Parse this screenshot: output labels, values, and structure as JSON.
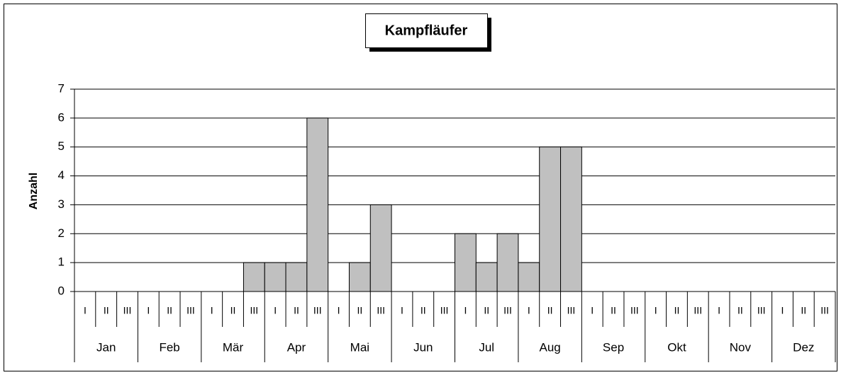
{
  "chart_data": {
    "type": "bar",
    "title": "Kampfläufer",
    "y_label": "Anzahl",
    "categories": [
      "I",
      "II",
      "III",
      "I",
      "II",
      "III",
      "I",
      "II",
      "III",
      "I",
      "II",
      "III",
      "I",
      "II",
      "III",
      "I",
      "II",
      "III",
      "I",
      "II",
      "III",
      "I",
      "II",
      "III",
      "I",
      "II",
      "III",
      "I",
      "II",
      "III",
      "I",
      "II",
      "III",
      "I",
      "II",
      "III"
    ],
    "category_groups": [
      "Jan",
      "Feb",
      "Mär",
      "Apr",
      "Mai",
      "Jun",
      "Jul",
      "Aug",
      "Sep",
      "Okt",
      "Nov",
      "Dez"
    ],
    "values": [
      0,
      0,
      0,
      0,
      0,
      0,
      0,
      0,
      1,
      1,
      1,
      6,
      0,
      1,
      3,
      0,
      0,
      0,
      2,
      1,
      2,
      1,
      5,
      5,
      0,
      0,
      0,
      0,
      0,
      0,
      0,
      0,
      0,
      0,
      0,
      0
    ],
    "color": "#c0c0c0",
    "ylim": [
      0,
      7
    ],
    "yticks": [
      0,
      1,
      2,
      3,
      4,
      5,
      6,
      7
    ],
    "grid": true
  }
}
